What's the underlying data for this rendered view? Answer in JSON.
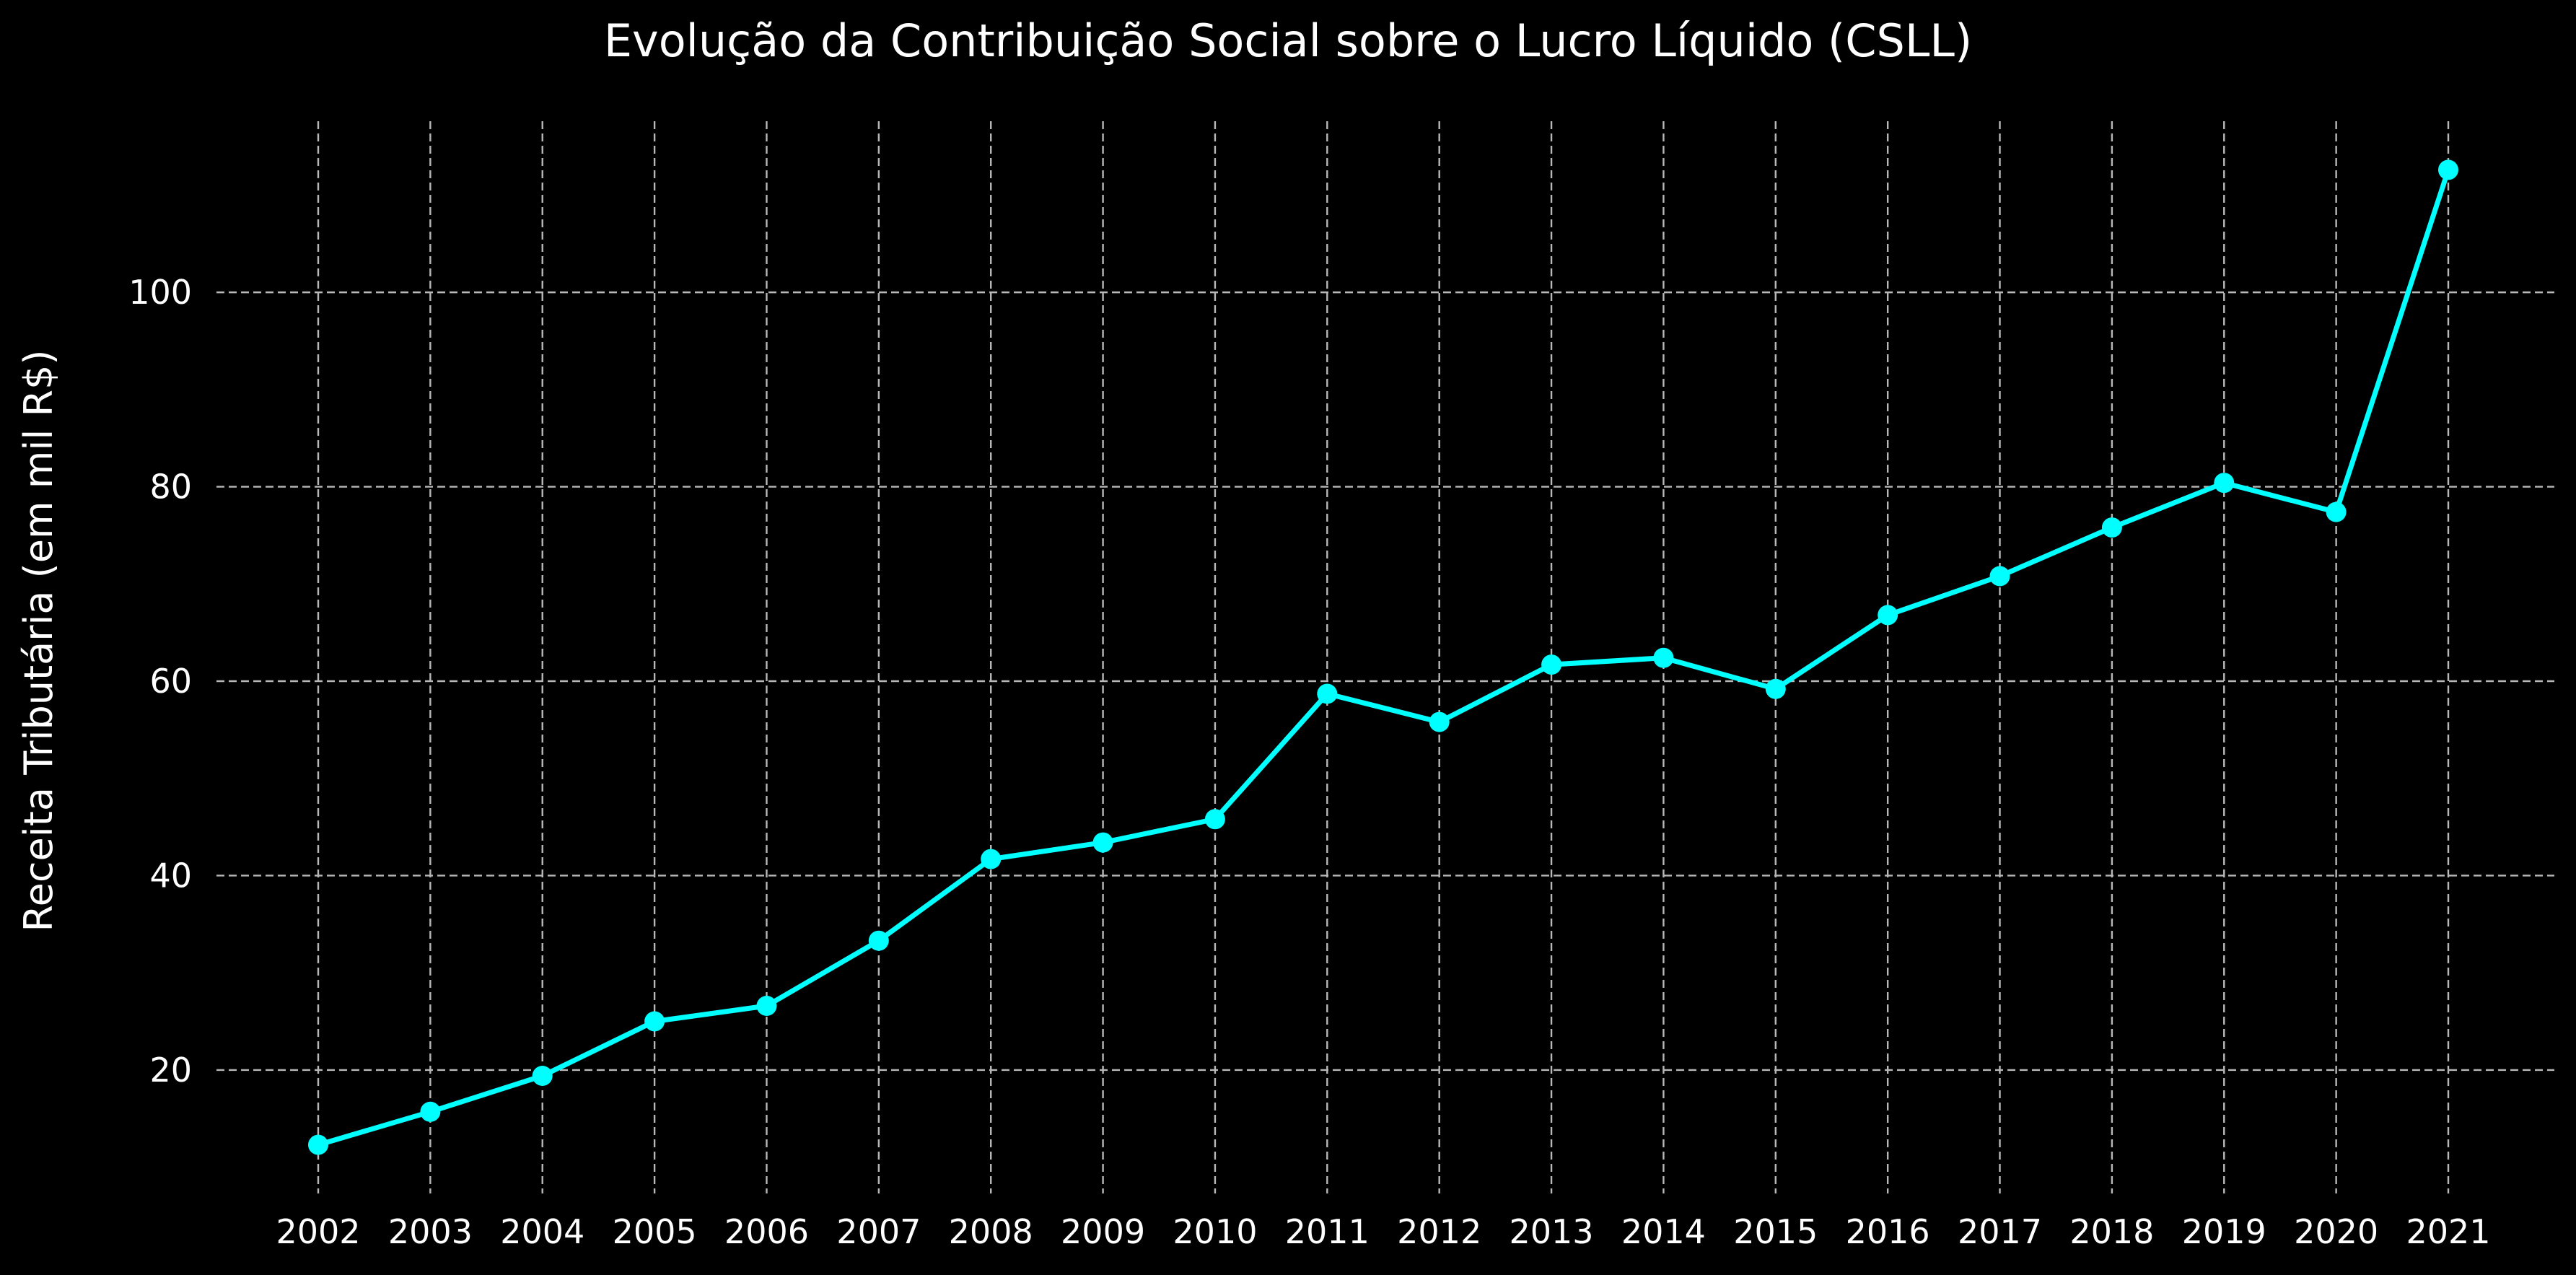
{
  "chart_data": {
    "type": "line",
    "title": "Evolução da Contribuição Social sobre o Lucro Líquido (CSLL)",
    "xlabel": "",
    "ylabel": "Receita Tributária (em mil R$)",
    "x": [
      2002,
      2003,
      2004,
      2005,
      2006,
      2007,
      2008,
      2009,
      2010,
      2011,
      2012,
      2013,
      2014,
      2015,
      2016,
      2017,
      2018,
      2019,
      2020,
      2021
    ],
    "x_tick_labels": [
      "2002",
      "2003",
      "2004",
      "2005",
      "2006",
      "2007",
      "2008",
      "2009",
      "2010",
      "2011",
      "2012",
      "2013",
      "2014",
      "2015",
      "2016",
      "2017",
      "2018",
      "2019",
      "2020",
      "2021"
    ],
    "series": [
      {
        "values": [
          12.3,
          15.7,
          19.4,
          25.0,
          26.6,
          33.3,
          41.7,
          43.4,
          45.8,
          58.7,
          55.8,
          61.7,
          62.4,
          59.2,
          66.8,
          70.8,
          75.8,
          80.4,
          77.4,
          112.6
        ],
        "color": "#00ffff",
        "marker": "circle"
      }
    ],
    "y_ticks": [
      20,
      40,
      60,
      80,
      100
    ],
    "y_tick_labels": [
      "20",
      "40",
      "60",
      "80",
      "100"
    ],
    "ylim": [
      7.3,
      117.6
    ],
    "grid": true,
    "grid_color": "#b8b8b8",
    "background": "#000000",
    "text_color": "#ffffff",
    "legend": false
  }
}
